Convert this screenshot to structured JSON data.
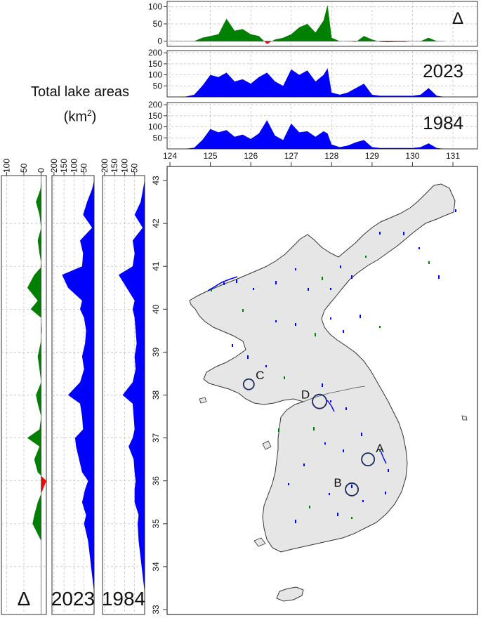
{
  "header": {
    "title_line1": "Total lake areas",
    "title_line2": "(km",
    "title_sup": "2",
    "title_close": ")"
  },
  "colors": {
    "lake_area": "#0000ff",
    "gain": "#008000",
    "loss": "#ff0000",
    "land": "#e6e6e6",
    "grid": "#b8b8b8"
  },
  "chart_data": [
    {
      "type": "area",
      "title": "Δ",
      "orientation": "by longitude",
      "x": [
        124.0,
        124.2,
        124.4,
        124.6,
        124.8,
        125.0,
        125.2,
        125.4,
        125.6,
        125.8,
        126.0,
        126.2,
        126.4,
        126.6,
        126.8,
        127.0,
        127.2,
        127.4,
        127.6,
        127.8,
        127.9,
        128.0,
        128.2,
        128.4,
        128.6,
        128.8,
        129.0,
        129.2,
        129.4,
        129.6,
        129.8,
        130.0,
        130.2,
        130.4,
        130.6,
        130.8
      ],
      "y": [
        0,
        0,
        0,
        0,
        10,
        15,
        20,
        65,
        30,
        35,
        20,
        15,
        -8,
        5,
        10,
        20,
        40,
        50,
        25,
        60,
        105,
        10,
        0,
        0,
        -2,
        15,
        5,
        -2,
        -3,
        -2,
        -2,
        0,
        0,
        10,
        0,
        0
      ],
      "ylim": [
        -15,
        115
      ],
      "yticks": [
        0,
        50,
        100
      ]
    },
    {
      "type": "area",
      "title": "2023",
      "orientation": "by longitude",
      "x": [
        124.0,
        124.2,
        124.4,
        124.6,
        124.8,
        125.0,
        125.2,
        125.4,
        125.6,
        125.8,
        126.0,
        126.2,
        126.4,
        126.6,
        126.8,
        127.0,
        127.2,
        127.4,
        127.6,
        127.8,
        127.9,
        128.0,
        128.2,
        128.4,
        128.6,
        128.8,
        129.0,
        129.2,
        129.4,
        129.6,
        129.8,
        130.0,
        130.2,
        130.4,
        130.6,
        130.8
      ],
      "y": [
        0,
        0,
        2,
        10,
        50,
        100,
        90,
        110,
        70,
        80,
        60,
        90,
        110,
        70,
        50,
        125,
        100,
        120,
        70,
        100,
        130,
        20,
        10,
        20,
        40,
        60,
        10,
        5,
        5,
        5,
        5,
        5,
        10,
        40,
        5,
        0
      ],
      "ylim": [
        0,
        210
      ],
      "yticks": [
        50,
        100,
        150,
        200
      ]
    },
    {
      "type": "area",
      "title": "1984",
      "orientation": "by longitude",
      "x": [
        124.0,
        124.2,
        124.4,
        124.6,
        124.8,
        125.0,
        125.2,
        125.4,
        125.6,
        125.8,
        126.0,
        126.2,
        126.4,
        126.6,
        126.8,
        127.0,
        127.2,
        127.4,
        127.6,
        127.8,
        127.9,
        128.0,
        128.2,
        128.4,
        128.6,
        128.8,
        129.0,
        129.2,
        129.4,
        129.6,
        129.8,
        130.0,
        130.2,
        130.4,
        130.6,
        130.8
      ],
      "y": [
        0,
        0,
        1,
        5,
        40,
        90,
        75,
        85,
        55,
        65,
        45,
        70,
        130,
        60,
        40,
        115,
        75,
        80,
        55,
        80,
        70,
        20,
        8,
        15,
        30,
        40,
        8,
        4,
        4,
        4,
        4,
        4,
        8,
        25,
        4,
        0
      ],
      "ylim": [
        0,
        210
      ],
      "yticks": [
        50,
        100,
        150,
        200
      ]
    },
    {
      "type": "area",
      "title": "Δ",
      "orientation": "by latitude",
      "x": [
        33.0,
        33.4,
        33.8,
        34.2,
        34.6,
        35.0,
        35.2,
        35.5,
        35.8,
        36.0,
        36.2,
        36.5,
        36.8,
        37.0,
        37.2,
        37.5,
        37.8,
        38.0,
        38.3,
        38.6,
        38.9,
        39.2,
        39.5,
        39.8,
        40.0,
        40.2,
        40.5,
        40.8,
        41.0,
        41.3,
        41.6,
        41.9,
        42.2,
        42.5,
        42.8,
        43.0
      ],
      "y": [
        0,
        0,
        0,
        0,
        0,
        25,
        20,
        10,
        -5,
        -15,
        10,
        20,
        5,
        40,
        5,
        0,
        10,
        15,
        0,
        5,
        10,
        2,
        -2,
        0,
        30,
        10,
        40,
        20,
        -2,
        5,
        10,
        0,
        5,
        15,
        2,
        0
      ],
      "ylim": [
        -15,
        115
      ],
      "xticks": [
        0,
        50,
        100
      ]
    },
    {
      "type": "area",
      "title": "2023",
      "orientation": "by latitude",
      "x": [
        33.0,
        33.4,
        33.8,
        34.2,
        34.6,
        35.0,
        35.2,
        35.5,
        35.8,
        36.0,
        36.2,
        36.5,
        36.8,
        37.0,
        37.2,
        37.5,
        37.8,
        38.0,
        38.3,
        38.6,
        38.9,
        39.2,
        39.5,
        39.8,
        40.0,
        40.2,
        40.5,
        40.8,
        41.0,
        41.3,
        41.6,
        41.9,
        42.2,
        42.5,
        42.8,
        43.0
      ],
      "y": [
        0,
        0,
        10,
        20,
        30,
        50,
        40,
        60,
        45,
        30,
        60,
        75,
        90,
        95,
        55,
        60,
        70,
        130,
        70,
        50,
        60,
        45,
        40,
        50,
        70,
        60,
        130,
        160,
        60,
        55,
        70,
        10,
        55,
        35,
        10,
        0
      ],
      "ylim": [
        0,
        210
      ],
      "xticks": [
        50,
        100,
        150,
        200
      ]
    },
    {
      "type": "area",
      "title": "1984",
      "orientation": "by latitude",
      "x": [
        33.0,
        33.4,
        33.8,
        34.2,
        34.6,
        35.0,
        35.2,
        35.5,
        35.8,
        36.0,
        36.2,
        36.5,
        36.8,
        37.0,
        37.2,
        37.5,
        37.8,
        38.0,
        38.3,
        38.6,
        38.9,
        39.2,
        39.5,
        39.8,
        40.0,
        40.2,
        40.5,
        40.8,
        41.0,
        41.3,
        41.6,
        41.9,
        42.2,
        42.5,
        42.8,
        43.0
      ],
      "y": [
        0,
        0,
        10,
        20,
        30,
        35,
        30,
        50,
        50,
        45,
        50,
        55,
        80,
        60,
        50,
        55,
        60,
        110,
        60,
        45,
        50,
        40,
        45,
        50,
        60,
        50,
        90,
        130,
        60,
        50,
        60,
        10,
        50,
        20,
        8,
        0
      ],
      "ylim": [
        0,
        210
      ],
      "xticks": [
        50,
        100,
        150,
        200
      ]
    },
    {
      "type": "map",
      "x_ticks": [
        124,
        125,
        126,
        127,
        128,
        129,
        130,
        131
      ],
      "y_ticks": [
        33,
        34,
        35,
        36,
        37,
        38,
        39,
        40,
        41,
        42,
        43
      ],
      "xlim": [
        124,
        131
      ],
      "ylim": [
        33,
        43
      ],
      "markers": [
        {
          "label": "A",
          "lon": 128.9,
          "lat": 36.5
        },
        {
          "label": "B",
          "lon": 128.5,
          "lat": 35.8
        },
        {
          "label": "C",
          "lon": 125.95,
          "lat": 38.25
        },
        {
          "label": "D",
          "lon": 127.7,
          "lat": 37.85
        }
      ]
    }
  ]
}
